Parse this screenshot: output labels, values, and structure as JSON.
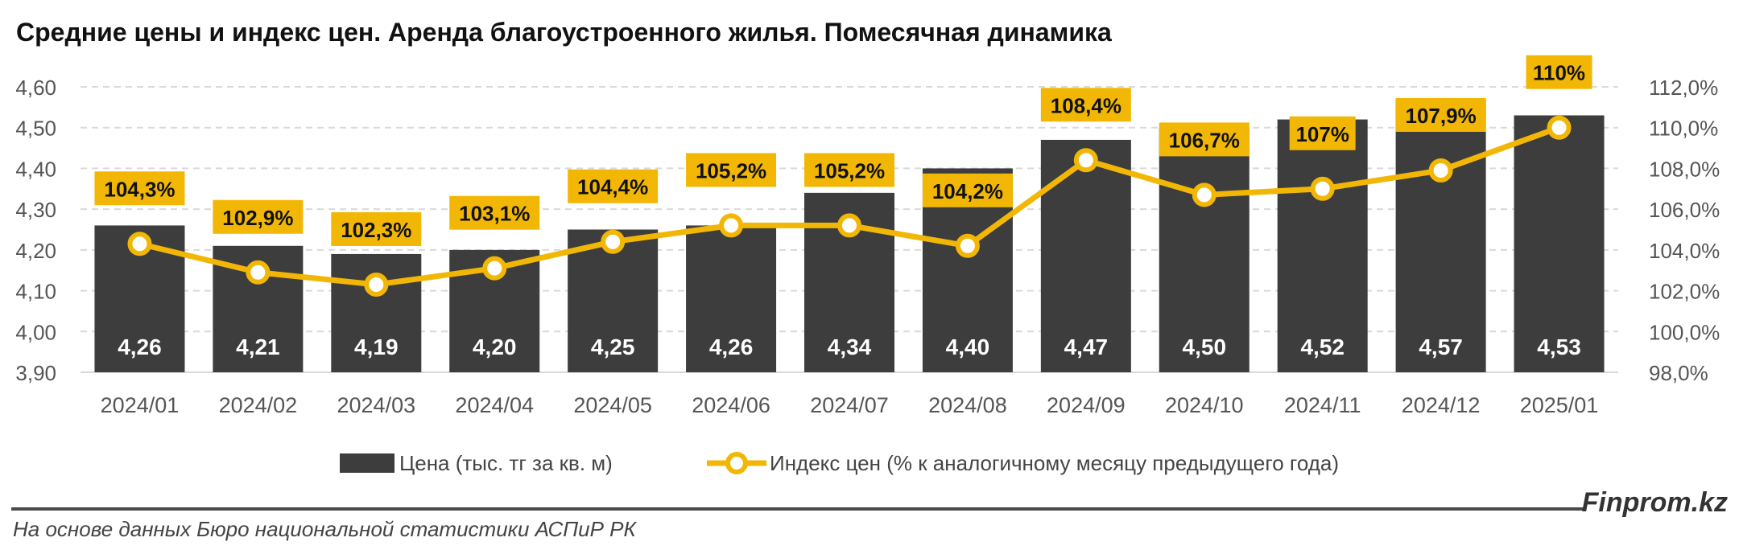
{
  "title": "Средние цены и индекс цен. Аренда благоустроенного жилья. Помесячная динамика",
  "source": "На основе данных Бюро национальной статистики АСПиР РК",
  "brand": "Finprom.kz",
  "colors": {
    "bar": "#3d3d3d",
    "line": "#f2b705",
    "label_box": "#f2b705",
    "grid": "#d9d9d9",
    "axis_text": "#555555"
  },
  "chart_data": {
    "type": "bar",
    "categories": [
      "2024/01",
      "2024/02",
      "2024/03",
      "2024/04",
      "2024/05",
      "2024/06",
      "2024/07",
      "2024/08",
      "2024/09",
      "2024/10",
      "2024/11",
      "2024/12",
      "2025/01"
    ],
    "series": [
      {
        "name": "Цена (тыс. тг за кв. м)",
        "type": "bar",
        "axis": "left",
        "values": [
          4.26,
          4.21,
          4.19,
          4.2,
          4.25,
          4.26,
          4.34,
          4.4,
          4.47,
          4.5,
          4.52,
          4.57,
          4.53
        ],
        "labels": [
          "4,26",
          "4,21",
          "4,19",
          "4,20",
          "4,25",
          "4,26",
          "4,34",
          "4,40",
          "4,47",
          "4,50",
          "4,52",
          "4,57",
          "4,53"
        ]
      },
      {
        "name": "Индекс цен (% к аналогичному месяцу предыдущего года)",
        "type": "line",
        "axis": "right",
        "values": [
          104.3,
          102.9,
          102.3,
          103.1,
          104.4,
          105.2,
          105.2,
          104.2,
          108.4,
          106.7,
          107.0,
          107.9,
          110.0
        ],
        "labels": [
          "104,3%",
          "102,9%",
          "102,3%",
          "103,1%",
          "104,4%",
          "105,2%",
          "105,2%",
          "104,2%",
          "108,4%",
          "106,7%",
          "107%",
          "107,9%",
          "110%"
        ]
      }
    ],
    "y_left": {
      "range": [
        3.9,
        4.6
      ],
      "ticks": [
        4.6,
        4.5,
        4.4,
        4.3,
        4.2,
        4.1,
        4.0,
        3.9
      ],
      "tick_labels": [
        "4,60",
        "4,50",
        "4,40",
        "4,30",
        "4,20",
        "4,10",
        "4,00",
        "3,90"
      ]
    },
    "y_right": {
      "range": [
        98,
        112
      ],
      "ticks": [
        112,
        110,
        108,
        106,
        104,
        102,
        100,
        98
      ],
      "tick_labels": [
        "112,0%",
        "110,0%",
        "108,0%",
        "106,0%",
        "104,0%",
        "102,0%",
        "100,0%",
        "98,0%"
      ]
    },
    "grid": "horizontal dashed",
    "legend_position": "bottom"
  }
}
